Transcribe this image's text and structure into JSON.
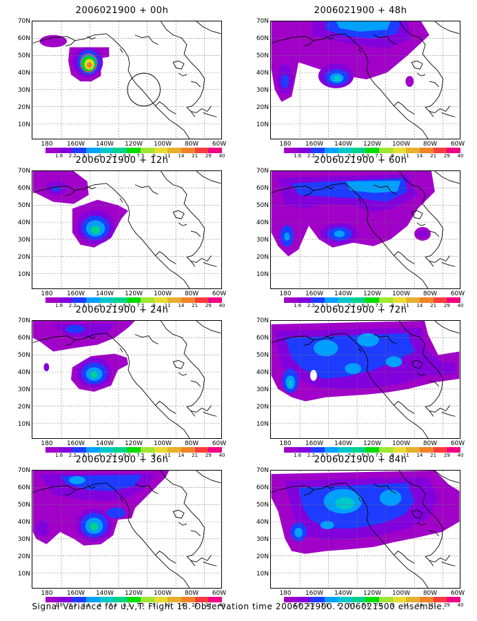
{
  "panels": [
    {
      "title": "2006021900 + 00h"
    },
    {
      "title": "2006021900 + 48h"
    },
    {
      "title": "2006021900 + 12h"
    },
    {
      "title": "2006021900 + 60h"
    },
    {
      "title": "2006021900 + 24h"
    },
    {
      "title": "2006021900 + 72h"
    },
    {
      "title": "2006021900 + 36h"
    },
    {
      "title": "2006021900 + 84h"
    }
  ],
  "lat_labels": [
    "70N",
    "60N",
    "50N",
    "40N",
    "30N",
    "20N",
    "10N"
  ],
  "lon_labels": [
    "180",
    "160W",
    "140W",
    "120W",
    "100W",
    "80W",
    "60W"
  ],
  "colorbar": {
    "labels": [
      "1.6",
      "2.2",
      "3.1",
      "4",
      "5.1",
      "6.3",
      "7.5",
      "9",
      "11",
      "14",
      "21",
      "29",
      "40"
    ],
    "colors": [
      "#a000c8",
      "#8200dc",
      "#1e3cff",
      "#00a0ff",
      "#00c8c8",
      "#00d28c",
      "#00dc00",
      "#a0e632",
      "#e6dc32",
      "#e6af2d",
      "#f08228",
      "#fa3c3c",
      "#f00082"
    ]
  },
  "caption": "Signal Variance for u,v,T. Flight 18. Observation time 2006021900. 2006021500 ensemble."
}
